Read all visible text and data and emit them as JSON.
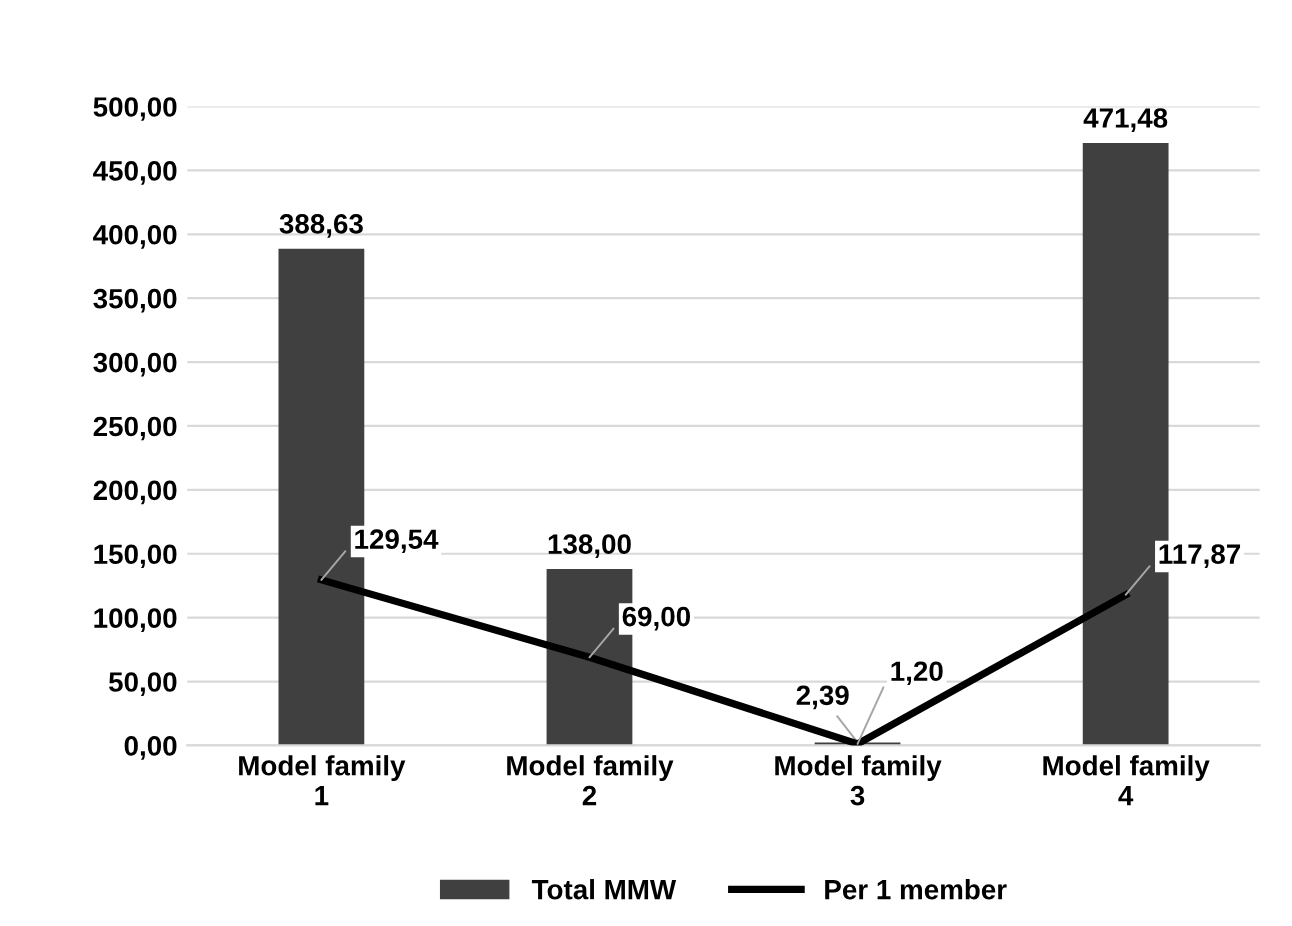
{
  "chart_data": {
    "type": "bar",
    "categories": [
      "Model family\n1",
      "Model family\n2",
      "Model family\n3",
      "Model family\n4"
    ],
    "series": [
      {
        "name": "Total MMW",
        "color": "#404040",
        "values": [
          388.63,
          138.0,
          2.39,
          471.48
        ],
        "value_labels": [
          "388,63",
          "138,00",
          "2,39",
          "471,48"
        ]
      },
      {
        "name": "Per 1 member",
        "type": "line",
        "color": "#000000",
        "values": [
          129.54,
          69.0,
          1.2,
          117.87
        ],
        "value_labels": [
          "129,54",
          "69,00",
          "1,20",
          "117,87"
        ]
      }
    ],
    "ylim": [
      0,
      500
    ],
    "yticks": [
      {
        "value": 0,
        "label": "0,00"
      },
      {
        "value": 50,
        "label": "50,00"
      },
      {
        "value": 100,
        "label": "100,00"
      },
      {
        "value": 150,
        "label": "150,00"
      },
      {
        "value": 200,
        "label": "200,00"
      },
      {
        "value": 250,
        "label": "250,00"
      },
      {
        "value": 300,
        "label": "300,00"
      },
      {
        "value": 350,
        "label": "350,00"
      },
      {
        "value": 400,
        "label": "400,00"
      },
      {
        "value": 450,
        "label": "450,00"
      },
      {
        "value": 500,
        "label": "500,00"
      }
    ],
    "grid": "y",
    "legend": "bottom",
    "marker": "none",
    "line_style": "solid"
  }
}
